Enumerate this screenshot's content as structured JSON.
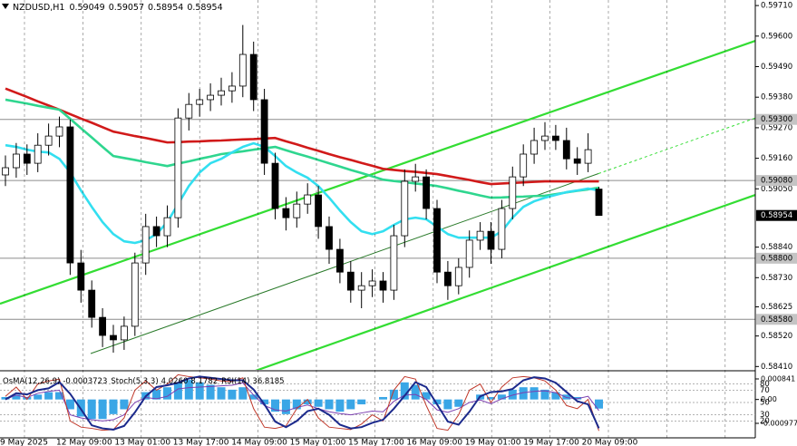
{
  "chart_data": {
    "type": "candlestick",
    "symbol": "NZDUSD,H1",
    "open": [
      0.591,
      0.59126,
      0.59175,
      0.59142,
      0.59207,
      0.5924,
      0.59273,
      0.58783,
      0.58685,
      0.58587,
      0.58522,
      0.58506,
      0.58555,
      0.58783,
      0.58914,
      0.58881,
      0.58946,
      0.59305,
      0.59354,
      0.59371,
      0.59387,
      0.59403,
      0.5942,
      0.59534,
      0.59371,
      0.59142,
      0.58979,
      0.58946,
      0.58995,
      0.59028,
      0.58914,
      0.58832,
      0.5875,
      0.58685,
      0.58701,
      0.58718,
      0.58685,
      0.58881,
      0.59077,
      0.59093,
      0.58979,
      0.5875,
      0.58701,
      0.58767,
      0.58865,
      0.58897,
      0.58832,
      0.58979,
      0.59093,
      0.59175,
      0.59224,
      0.5924,
      0.59224,
      0.59158,
      0.59142,
      0.59049
    ],
    "high": [
      0.5917,
      0.59215,
      0.5921,
      0.5925,
      0.59285,
      0.5931,
      0.593,
      0.5883,
      0.5872,
      0.5862,
      0.5856,
      0.5859,
      0.5882,
      0.5896,
      0.5895,
      0.5899,
      0.5934,
      0.59395,
      0.5941,
      0.5943,
      0.5945,
      0.5947,
      0.5964,
      0.5958,
      0.5941,
      0.5918,
      0.5902,
      0.5904,
      0.5907,
      0.5906,
      0.5895,
      0.5887,
      0.5879,
      0.5875,
      0.5876,
      0.5875,
      0.5892,
      0.5912,
      0.5914,
      0.5912,
      0.5901,
      0.5879,
      0.588,
      0.589,
      0.5893,
      0.5893,
      0.5901,
      0.5913,
      0.5921,
      0.5927,
      0.5929,
      0.5928,
      0.5927,
      0.592,
      0.5925,
      0.59057
    ],
    "low": [
      0.5906,
      0.5909,
      0.591,
      0.5911,
      0.5917,
      0.592,
      0.5874,
      0.5864,
      0.5855,
      0.5848,
      0.5846,
      0.5847,
      0.5852,
      0.5874,
      0.5884,
      0.5884,
      0.5891,
      0.5926,
      0.5931,
      0.5933,
      0.5935,
      0.5936,
      0.5938,
      0.5933,
      0.591,
      0.5894,
      0.589,
      0.5891,
      0.5896,
      0.5887,
      0.5878,
      0.5871,
      0.5864,
      0.5862,
      0.5866,
      0.5864,
      0.5865,
      0.5884,
      0.5904,
      0.5894,
      0.5871,
      0.5865,
      0.5867,
      0.5873,
      0.5883,
      0.5878,
      0.588,
      0.5894,
      0.5906,
      0.5914,
      0.5919,
      0.5919,
      0.5912,
      0.591,
      0.5911,
      0.58954
    ],
    "close": [
      0.59126,
      0.59175,
      0.59142,
      0.59207,
      0.5924,
      0.59273,
      0.58783,
      0.58685,
      0.58587,
      0.58522,
      0.58506,
      0.58555,
      0.58783,
      0.58914,
      0.58881,
      0.58946,
      0.59305,
      0.59354,
      0.59371,
      0.59387,
      0.59403,
      0.5942,
      0.59534,
      0.59371,
      0.59142,
      0.58979,
      0.58946,
      0.58995,
      0.59028,
      0.58914,
      0.58832,
      0.5875,
      0.58685,
      0.58701,
      0.58718,
      0.58685,
      0.58881,
      0.59077,
      0.59093,
      0.58979,
      0.5875,
      0.58701,
      0.58767,
      0.58865,
      0.58897,
      0.58832,
      0.58979,
      0.59093,
      0.59175,
      0.59224,
      0.5924,
      0.59224,
      0.59158,
      0.59142,
      0.59191,
      0.58954
    ],
    "ylim": [
      0.58398,
      0.5973
    ],
    "yticks": [
      {
        "value": 0.5971,
        "label": "0.59710"
      },
      {
        "value": 0.596,
        "label": "0.59600"
      },
      {
        "value": 0.5949,
        "label": "0.59490"
      },
      {
        "value": 0.5938,
        "label": "0.59380"
      },
      {
        "value": 0.5927,
        "label": "0.59270"
      },
      {
        "value": 0.5916,
        "label": "0.59160"
      },
      {
        "value": 0.5905,
        "label": "0.59050"
      },
      {
        "value": 0.5884,
        "label": "0.58840"
      },
      {
        "value": 0.5873,
        "label": "0.58730"
      },
      0.58625,
      {
        "value": 0.5852,
        "label": "0.58520"
      },
      {
        "value": 0.5841,
        "label": "0.58410"
      }
    ],
    "time_labels": [
      "9 May 2025",
      "12 May 09:00",
      "13 May 01:00",
      "13 May 17:00",
      "14 May 09:00",
      "15 May 01:00",
      "15 May 17:00",
      "16 May 09:00",
      "19 May 01:00",
      "19 May 17:00",
      "20 May 09:00"
    ],
    "moving_averages": [
      {
        "color": "#d11a1a",
        "values": [
          0.59411,
          0.59396,
          0.59381,
          0.59365,
          0.5935,
          0.59335,
          0.59319,
          0.59303,
          0.59288,
          0.59272,
          0.59256,
          0.59248,
          0.5924,
          0.59233,
          0.59225,
          0.59217,
          0.59218,
          0.5922,
          0.59221,
          0.59223,
          0.59224,
          0.59226,
          0.59228,
          0.59229,
          0.59231,
          0.59233,
          0.59221,
          0.5921,
          0.59198,
          0.59187,
          0.59175,
          0.59164,
          0.59154,
          0.59143,
          0.59133,
          0.59122,
          0.59118,
          0.59114,
          0.59111,
          0.59107,
          0.59103,
          0.59096,
          0.59089,
          0.59082,
          0.59074,
          0.59067,
          0.59069,
          0.59071,
          0.59073,
          0.59075,
          0.59077,
          0.59077,
          0.59077,
          0.59077,
          0.59077,
          0.59077
        ]
      },
      {
        "color": "#2fd68f",
        "values": [
          0.59371,
          0.59364,
          0.59357,
          0.59349,
          0.59342,
          0.59335,
          0.59302,
          0.59268,
          0.59235,
          0.59201,
          0.59168,
          0.59161,
          0.59154,
          0.59146,
          0.59139,
          0.59132,
          0.59141,
          0.59149,
          0.59158,
          0.59166,
          0.59175,
          0.5918,
          0.59185,
          0.59191,
          0.59196,
          0.59201,
          0.59189,
          0.59177,
          0.59166,
          0.59154,
          0.59142,
          0.5913,
          0.59118,
          0.59107,
          0.59095,
          0.59083,
          0.59078,
          0.59074,
          0.59069,
          0.59065,
          0.5906,
          0.59052,
          0.59043,
          0.59035,
          0.59026,
          0.59018,
          0.59019,
          0.59021,
          0.59022,
          0.59024,
          0.59025,
          0.59031,
          0.59037,
          0.59043,
          0.59048,
          0.59054
        ]
      },
      {
        "color": "#33dff0",
        "values": [
          0.59207,
          0.59201,
          0.59191,
          0.59184,
          0.59181,
          0.59158,
          0.59109,
          0.59044,
          0.58985,
          0.5893,
          0.58887,
          0.58861,
          0.58855,
          0.58865,
          0.58887,
          0.5893,
          0.58995,
          0.5906,
          0.59109,
          0.59142,
          0.59158,
          0.59181,
          0.59201,
          0.59214,
          0.59201,
          0.59168,
          0.59132,
          0.59109,
          0.5909,
          0.5906,
          0.59018,
          0.58972,
          0.5893,
          0.58897,
          0.58887,
          0.58897,
          0.5892,
          0.5894,
          0.58946,
          0.5894,
          0.58914,
          0.58887,
          0.58874,
          0.58874,
          0.58874,
          0.58874,
          0.58897,
          0.58946,
          0.58985,
          0.59005,
          0.59018,
          0.59028,
          0.59038,
          0.59044,
          0.59051,
          0.59044
        ]
      }
    ],
    "trendlines": [
      {
        "color": "#33dd33",
        "values": [
          0.58636,
          0.59583
        ]
      },
      {
        "color": "#33dd33",
        "values": [
          0.58071,
          0.59028
        ]
      },
      {
        "color": "#2a7a2a",
        "values": [
          0.58341,
          0.59305
        ]
      }
    ],
    "levels": [
      {
        "value": 0.593,
        "label": "0.59300"
      },
      {
        "value": 0.5908,
        "label": "0.59080"
      },
      {
        "value": 0.588,
        "label": "0.58800"
      },
      {
        "value": 0.5858,
        "label": "0.58580"
      }
    ],
    "oscillators": {
      "osma": {
        "name": "OsMA(12,26,9)",
        "color": "#3aa6e6",
        "values": [
          0.0001,
          0.0002,
          0.0001,
          0.0002,
          0.0003,
          0.0003,
          -0.0004,
          -0.0007,
          -0.0008,
          -0.0008,
          -0.0006,
          -0.0004,
          0,
          0.0003,
          0.0004,
          0.0005,
          0.0007,
          0.0008,
          0.0007,
          0.0006,
          0.0005,
          0.0004,
          0.0005,
          0.0002,
          -0.0002,
          -0.0005,
          -0.0006,
          -0.0004,
          -0.0002,
          -0.0003,
          -0.0004,
          -0.0005,
          -0.0004,
          -0.0002,
          0,
          0.0001,
          0.0004,
          0.0007,
          0.0006,
          0.0003,
          -0.0002,
          -0.0004,
          -0.0003,
          0,
          0.0002,
          0.0001,
          0.0002,
          0.0004,
          0.0005,
          0.0005,
          0.0004,
          0.0003,
          0.0002,
          0.0001,
          0,
          -0.0003723
        ],
        "ylim": [
          -0.000977,
          0.000841
        ],
        "yticks": [
          -0.000977,
          {
            "value": 0,
            "label": "0.00"
          },
          0.000841
        ]
      },
      "stoch": {
        "name": "Stoch(5,3,3)",
        "main": {
          "color": "#c0392b",
          "values": [
            60,
            75,
            55,
            80,
            85,
            88,
            20,
            10,
            8,
            5,
            6,
            25,
            70,
            85,
            70,
            80,
            95,
            92,
            90,
            88,
            85,
            84,
            90,
            40,
            10,
            8,
            12,
            40,
            55,
            25,
            10,
            8,
            6,
            15,
            30,
            20,
            70,
            92,
            88,
            45,
            8,
            5,
            30,
            70,
            80,
            50,
            75,
            90,
            92,
            90,
            85,
            70,
            45,
            40,
            55,
            4.026
          ],
          "value_labels": {
            "55": "4.0260"
          }
        },
        "signal": {
          "color": "#1c2a8c",
          "values": [
            55,
            65,
            63,
            70,
            73,
            83,
            64,
            39,
            13,
            8,
            6,
            12,
            34,
            60,
            75,
            78,
            82,
            89,
            92,
            90,
            88,
            86,
            86,
            71,
            47,
            19,
            10,
            20,
            36,
            40,
            30,
            14,
            8,
            10,
            17,
            22,
            40,
            61,
            83,
            75,
            47,
            19,
            14,
            35,
            60,
            67,
            68,
            72,
            86,
            91,
            89,
            82,
            67,
            52,
            47,
            8.1782
          ]
        }
      },
      "rsi": {
        "name": "RSI(14)",
        "color": "#7b3fb0",
        "values": [
          55,
          62,
          58,
          65,
          68,
          70,
          30,
          25,
          22,
          20,
          22,
          30,
          50,
          58,
          56,
          60,
          72,
          74,
          75,
          76,
          77,
          78,
          82,
          62,
          45,
          38,
          36,
          42,
          46,
          40,
          35,
          32,
          30,
          33,
          36,
          35,
          52,
          62,
          63,
          55,
          38,
          34,
          40,
          50,
          54,
          48,
          56,
          62,
          66,
          68,
          69,
          66,
          58,
          56,
          60,
          36.8185
        ]
      },
      "ylim": [
        0,
        100
      ],
      "levels": [
        80,
        70,
        50,
        30,
        20
      ]
    }
  }
}
